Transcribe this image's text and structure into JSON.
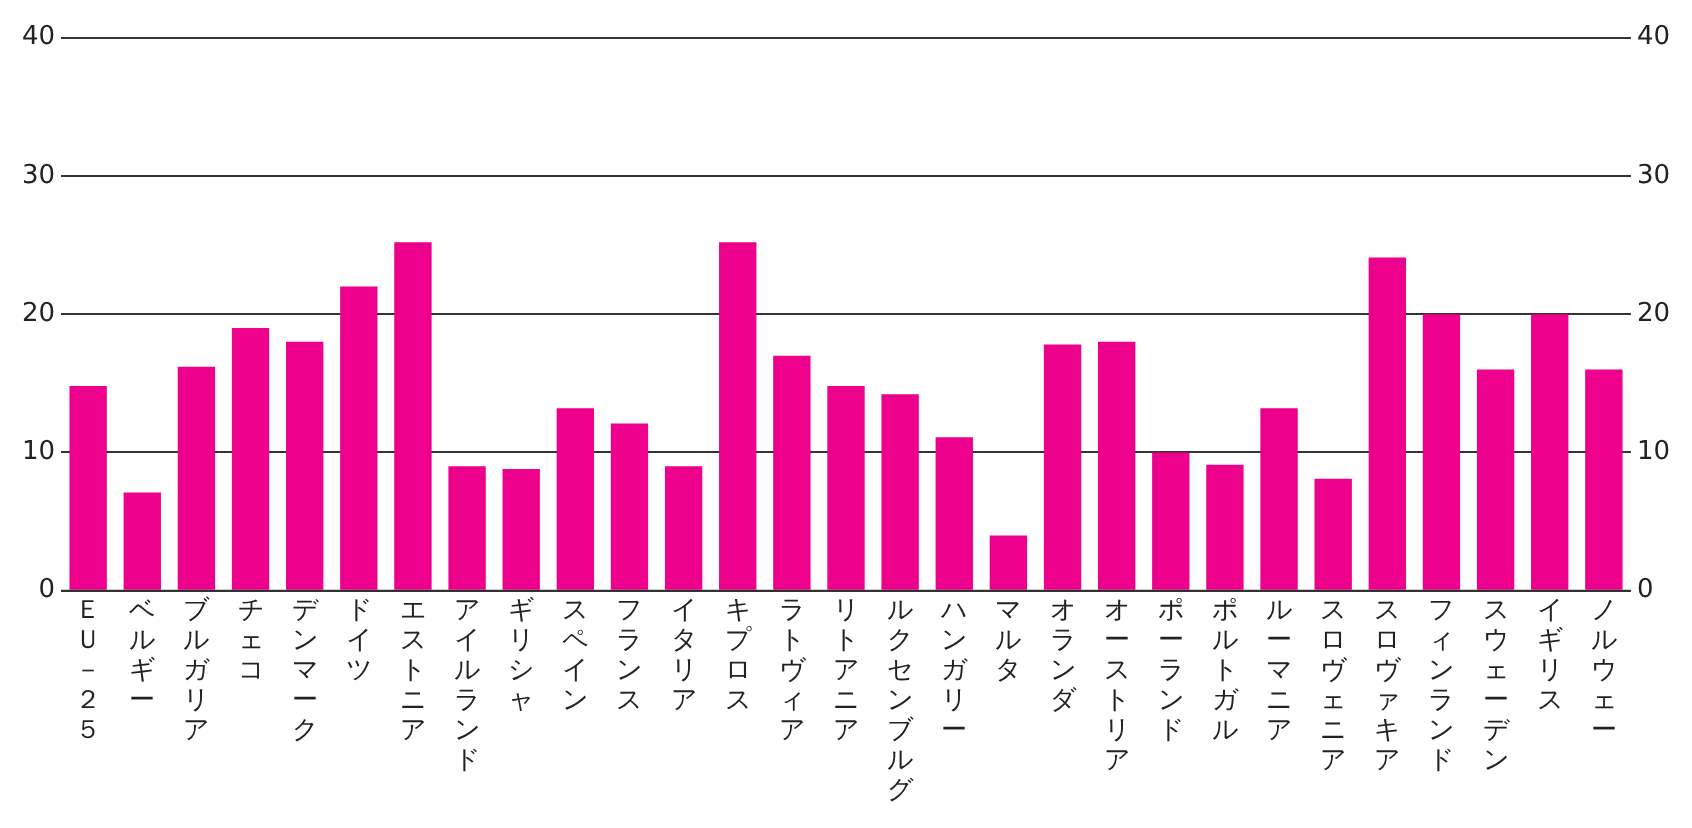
{
  "chart_data": {
    "type": "bar",
    "categories": [
      "ＥＵ－２５",
      "ベルギー",
      "ブルガリア",
      "チェコ",
      "デンマーク",
      "ドイツ",
      "エストニア",
      "アイルランド",
      "ギリシャ",
      "スペイン",
      "フランス",
      "イタリア",
      "キプロス",
      "ラトヴィア",
      "リトアニア",
      "ルクセンブルグ",
      "ハンガリー",
      "マルタ",
      "オランダ",
      "オーストリア",
      "ポーランド",
      "ポルトガル",
      "ルーマニア",
      "スロヴェニア",
      "スロヴァキア",
      "フィンランド",
      "スウェーデン",
      "イギリス",
      "ノルウェー"
    ],
    "values": [
      14.8,
      7.1,
      16.2,
      19,
      18,
      22,
      25.2,
      9,
      8.8,
      13.2,
      12.1,
      9,
      25.2,
      17,
      14.8,
      14.2,
      11.1,
      4,
      17.8,
      18,
      10,
      9.1,
      13.2,
      8.1,
      24.1,
      20,
      16,
      20,
      16
    ],
    "color": "#ec008c",
    "ylim": [
      0,
      40
    ],
    "yticks": [
      0,
      10,
      20,
      30,
      40
    ],
    "y2lim": [
      0,
      40
    ],
    "y2ticks": [
      0,
      10,
      20,
      30,
      40
    ],
    "grid": "y"
  }
}
